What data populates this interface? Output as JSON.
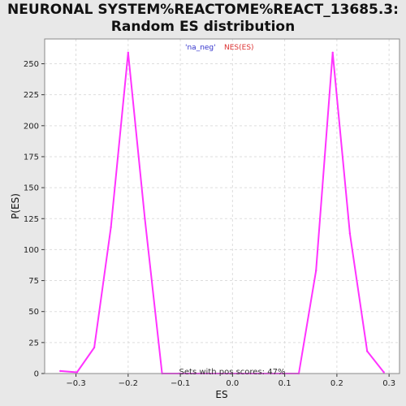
{
  "chart_data": {
    "type": "line",
    "title_line1": "NEURONAL SYSTEM%REACTOME%REACT_13685.3:",
    "title_line2": "Random ES distribution",
    "xlabel": "ES",
    "ylabel": "P(ES)",
    "xlim": [
      -0.36,
      0.32
    ],
    "ylim": [
      0,
      270
    ],
    "x_ticks": [
      -0.3,
      -0.2,
      -0.1,
      0.0,
      0.1,
      0.2,
      0.3
    ],
    "x_tick_labels": [
      "−0.3",
      "−0.2",
      "−0.1",
      "0.0",
      "0.1",
      "0.2",
      "0.3"
    ],
    "y_ticks": [
      0,
      25,
      50,
      75,
      100,
      125,
      150,
      175,
      200,
      225,
      250
    ],
    "grid": true,
    "legend": {
      "placement": "top-center",
      "entries": [
        {
          "text": "'na_neg'",
          "color": "#3333cc"
        },
        {
          "text": "NES(ES)",
          "color": "#dd3333"
        }
      ]
    },
    "annotation": "Sets with pos scores: 47%",
    "series": [
      {
        "color": "#ff33ff",
        "x": [
          -0.33,
          -0.298,
          -0.265,
          -0.233,
          -0.2,
          -0.168,
          -0.135,
          -0.103,
          0.127,
          0.16,
          0.192,
          0.225,
          0.258,
          0.29
        ],
        "y": [
          2,
          1,
          21,
          118,
          259,
          125,
          0,
          0,
          0,
          83,
          259,
          113,
          18,
          1
        ]
      }
    ]
  }
}
